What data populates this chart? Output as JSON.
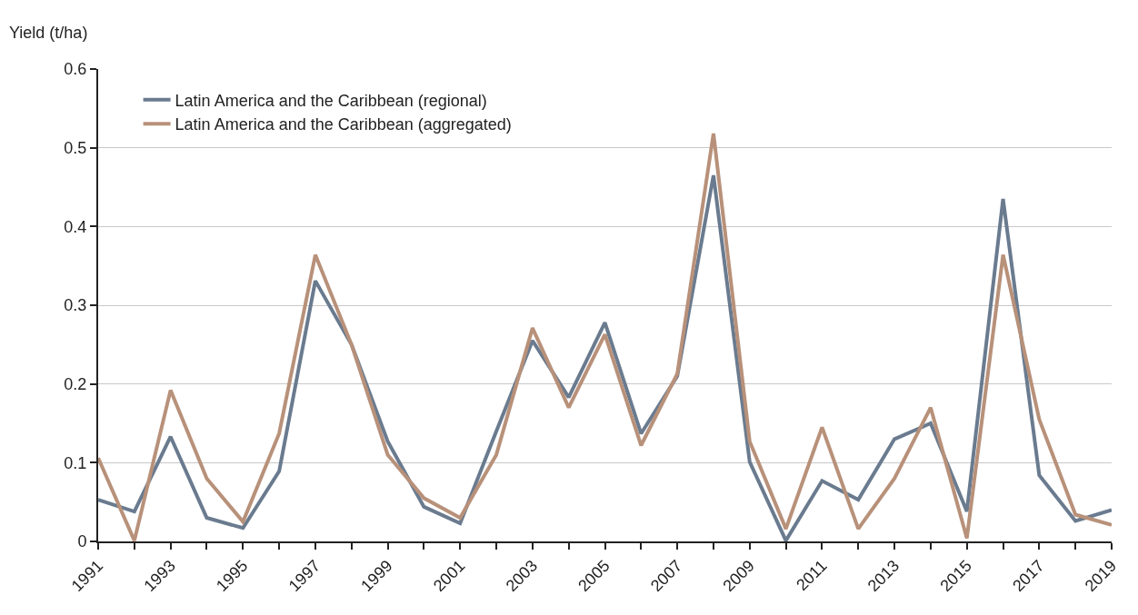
{
  "chart_data": {
    "type": "line",
    "ylabel": "Yield (t/ha)",
    "x": [
      1991,
      1992,
      1993,
      1994,
      1995,
      1996,
      1997,
      1998,
      1999,
      2000,
      2001,
      2002,
      2003,
      2004,
      2005,
      2006,
      2007,
      2008,
      2009,
      2010,
      2011,
      2012,
      2013,
      2014,
      2015,
      2016,
      2017,
      2018,
      2019
    ],
    "series": [
      {
        "name": "Latin America and the Caribbean (regional)",
        "color": "#6a7b8f",
        "values": [
          0.053,
          0.038,
          0.133,
          0.03,
          0.017,
          0.089,
          0.331,
          0.25,
          0.127,
          0.044,
          0.023,
          0.14,
          0.255,
          0.183,
          0.278,
          0.137,
          0.21,
          0.465,
          0.101,
          0.001,
          0.077,
          0.053,
          0.13,
          0.15,
          0.038,
          0.435,
          0.084,
          0.026,
          0.04
        ]
      },
      {
        "name": "Latin America and the Caribbean (aggregated)",
        "color": "#b8917a",
        "values": [
          0.106,
          0.001,
          0.192,
          0.08,
          0.025,
          0.137,
          0.364,
          0.25,
          0.11,
          0.055,
          0.03,
          0.11,
          0.271,
          0.17,
          0.263,
          0.122,
          0.213,
          0.518,
          0.127,
          0.016,
          0.145,
          0.016,
          0.08,
          0.17,
          0.004,
          0.364,
          0.155,
          0.034,
          0.021
        ]
      }
    ],
    "xlim": [
      1991,
      2019
    ],
    "xticks": [
      1991,
      {
        "value": 1992,
        "label": null
      },
      1993,
      {
        "value": 1994,
        "label": null
      },
      1995,
      {
        "value": 1996,
        "label": null
      },
      1997,
      {
        "value": 1998,
        "label": null
      },
      1999,
      {
        "value": 2000,
        "label": null
      },
      2001,
      {
        "value": 2002,
        "label": null
      },
      2003,
      {
        "value": 2004,
        "label": null
      },
      2005,
      {
        "value": 2006,
        "label": null
      },
      2007,
      {
        "value": 2008,
        "label": null
      },
      2009,
      {
        "value": 2010,
        "label": null
      },
      2011,
      {
        "value": 2012,
        "label": null
      },
      2013,
      {
        "value": 2014,
        "label": null
      },
      2015,
      {
        "value": 2016,
        "label": null
      },
      2017,
      {
        "value": 2018,
        "label": null
      },
      2019
    ],
    "ylim": [
      0,
      0.6
    ],
    "yticks": [
      0,
      0.1,
      0.2,
      0.3,
      0.4,
      0.5,
      0.6
    ],
    "grid": "y",
    "legend": "top left",
    "marker": "none",
    "line_style": "solid"
  }
}
